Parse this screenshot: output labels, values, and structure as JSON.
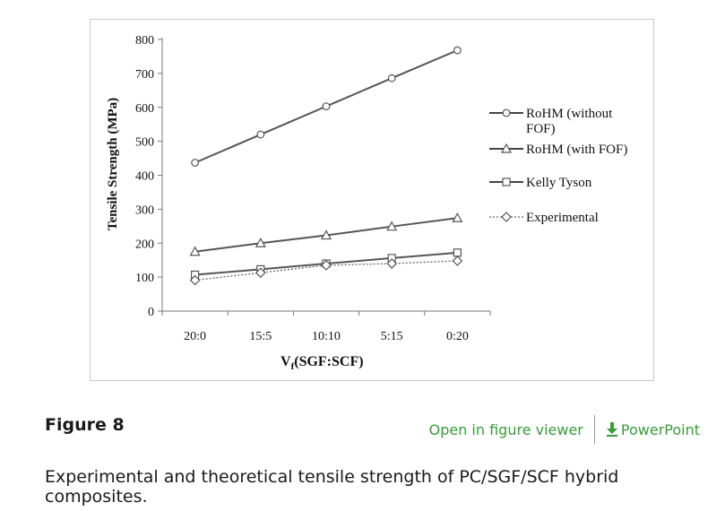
{
  "figure": {
    "label": "Figure 8",
    "open_viewer": "Open in figure viewer",
    "powerpoint": "PowerPoint",
    "caption": "Experimental and theoretical tensile strength of PC/SGF/SCF hybrid composites."
  },
  "chart_data": {
    "type": "line",
    "categories": [
      "20:0",
      "15:5",
      "10:10",
      "5:15",
      "0:20"
    ],
    "ylabel": "Tensile Strength (MPa)",
    "xlabel": "Vf(SGF:SCF)",
    "xlabel_main": "V",
    "xlabel_sub": "f",
    "xlabel_rest": "(SGF:SCF)",
    "ylim": [
      0,
      800
    ],
    "yticks": [
      "0",
      "100",
      "200",
      "300",
      "400",
      "500",
      "600",
      "700",
      "800"
    ],
    "legend_position": "right",
    "grid": false,
    "series": [
      {
        "name": "RoHM (without FOF)",
        "legend_lines": [
          "RoHM (without",
          "FOF)"
        ],
        "marker": "circle",
        "dashed": false,
        "values": [
          437,
          520,
          603,
          686,
          768
        ]
      },
      {
        "name": "RoHM (with FOF)",
        "legend_lines": [
          "RoHM (with FOF)"
        ],
        "marker": "triangle",
        "dashed": false,
        "values": [
          175,
          200,
          223,
          249,
          274
        ]
      },
      {
        "name": "Kelly Tyson",
        "legend_lines": [
          "Kelly Tyson"
        ],
        "marker": "square",
        "dashed": false,
        "values": [
          107,
          123,
          140,
          156,
          172
        ]
      },
      {
        "name": "Experimental",
        "legend_lines": [
          "Experimental"
        ],
        "marker": "diamond",
        "dashed": true,
        "values": [
          91,
          113,
          135,
          140,
          148
        ]
      }
    ]
  }
}
